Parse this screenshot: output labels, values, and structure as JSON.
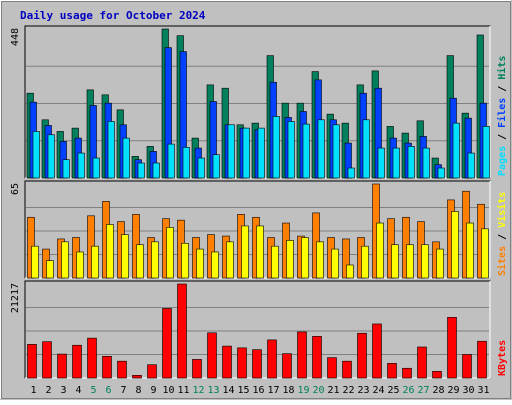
{
  "chart_data": [
    {
      "type": "bar",
      "title": "Daily usage for October 2024",
      "panel": "hits-files-pages",
      "ymax_label": "448",
      "ylim": [
        0,
        448
      ],
      "right_label": [
        "Pages",
        "Files",
        "Hits"
      ],
      "grid": true,
      "categories": [
        "1",
        "2",
        "3",
        "4",
        "5",
        "6",
        "7",
        "8",
        "9",
        "10",
        "11",
        "12",
        "13",
        "14",
        "15",
        "16",
        "17",
        "18",
        "19",
        "20",
        "21",
        "22",
        "23",
        "24",
        "25",
        "26",
        "27",
        "28",
        "29",
        "30",
        "31"
      ],
      "weekend_days": [
        "5",
        "6",
        "12",
        "13",
        "19",
        "20",
        "26",
        "27"
      ],
      "series": [
        {
          "name": "Hits",
          "color": "#00805c",
          "values": [
            255,
            175,
            140,
            150,
            265,
            250,
            205,
            65,
            95,
            448,
            428,
            120,
            280,
            270,
            160,
            165,
            368,
            225,
            225,
            320,
            192,
            165,
            280,
            322,
            155,
            135,
            172,
            60,
            368,
            195,
            430
          ]
        },
        {
          "name": "Files",
          "color": "#0040ff",
          "values": [
            228,
            158,
            110,
            120,
            218,
            225,
            160,
            55,
            80,
            392,
            380,
            90,
            230,
            160,
            150,
            145,
            288,
            182,
            200,
            295,
            175,
            105,
            255,
            270,
            120,
            105,
            125,
            40,
            240,
            180,
            225
          ]
        },
        {
          "name": "Pages",
          "color": "#00e0ff",
          "values": [
            140,
            130,
            55,
            75,
            60,
            170,
            120,
            45,
            45,
            102,
            92,
            60,
            70,
            160,
            150,
            150,
            185,
            170,
            162,
            175,
            160,
            30,
            175,
            90,
            90,
            95,
            90,
            30,
            165,
            75,
            155
          ]
        }
      ]
    },
    {
      "type": "bar",
      "panel": "visits-sites",
      "ymax_label": "65",
      "ylim": [
        0,
        65
      ],
      "right_label": [
        "Sites",
        "Visits"
      ],
      "grid": true,
      "categories": [
        "1",
        "2",
        "3",
        "4",
        "5",
        "6",
        "7",
        "8",
        "9",
        "10",
        "11",
        "12",
        "13",
        "14",
        "15",
        "16",
        "17",
        "18",
        "19",
        "20",
        "21",
        "22",
        "23",
        "24",
        "25",
        "26",
        "27",
        "28",
        "29",
        "30",
        "31"
      ],
      "series": [
        {
          "name": "Visits",
          "color": "#ff8000",
          "values": [
            42,
            20,
            27,
            28,
            43,
            53,
            39,
            44,
            28,
            41,
            40,
            28,
            30,
            29,
            44,
            42,
            28,
            38,
            29,
            45,
            28,
            27,
            28,
            65,
            41,
            42,
            39,
            25,
            54,
            60,
            51
          ]
        },
        {
          "name": "Sites",
          "color": "#ffff00",
          "values": [
            22,
            12,
            25,
            18,
            22,
            37,
            30,
            23,
            25,
            35,
            24,
            20,
            18,
            25,
            36,
            36,
            22,
            26,
            28,
            25,
            20,
            9,
            22,
            38,
            23,
            23,
            23,
            20,
            46,
            38,
            34
          ]
        }
      ]
    },
    {
      "type": "bar",
      "panel": "kbytes",
      "ymax_label": "21217",
      "ylim": [
        0,
        21217
      ],
      "right_label": [
        "KBytes"
      ],
      "grid": true,
      "categories": [
        "1",
        "2",
        "3",
        "4",
        "5",
        "6",
        "7",
        "8",
        "9",
        "10",
        "11",
        "12",
        "13",
        "14",
        "15",
        "16",
        "17",
        "18",
        "19",
        "20",
        "21",
        "22",
        "23",
        "24",
        "25",
        "26",
        "27",
        "28",
        "29",
        "30",
        "31"
      ],
      "series": [
        {
          "name": "KBytes",
          "color": "#ff0000",
          "values": [
            7600,
            8200,
            5400,
            7400,
            9000,
            4900,
            3800,
            600,
            3000,
            15700,
            21217,
            4200,
            10200,
            7200,
            6800,
            6400,
            8600,
            5500,
            10400,
            9400,
            4600,
            3800,
            10100,
            12200,
            3300,
            2200,
            7000,
            1500,
            13700,
            5300,
            8300
          ]
        }
      ]
    }
  ]
}
